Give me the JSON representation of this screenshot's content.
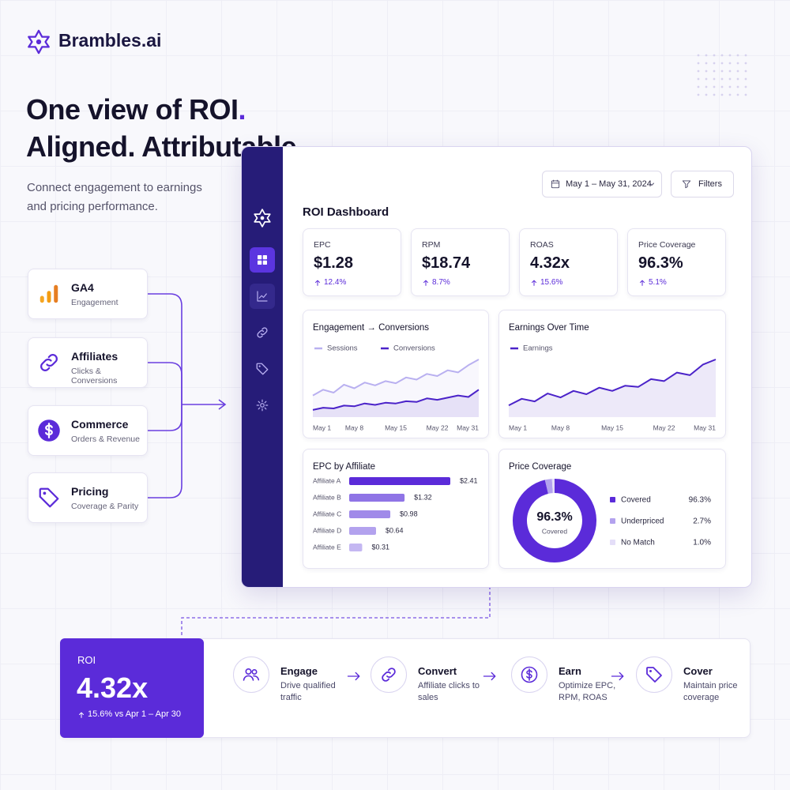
{
  "brand": {
    "name": "Brambles.ai"
  },
  "hero": {
    "title_lines": [
      "One view of ROI.",
      "Aligned. Attributable."
    ],
    "subtitle_lines": [
      "Connect engagement to earnings",
      "and pricing performance."
    ]
  },
  "sources": [
    {
      "name": "GA4",
      "detail": "Engagement"
    },
    {
      "name": "Affiliates",
      "detail": "Clicks & Conversions"
    },
    {
      "name": "Commerce",
      "detail": "Orders & Revenue"
    },
    {
      "name": "Pricing",
      "detail": "Coverage & Parity"
    }
  ],
  "dashboard": {
    "title": "ROI Dashboard",
    "date_range": "May 1 – May 31, 2024",
    "filters": "Filters",
    "kpis": [
      {
        "label": "EPC",
        "value": "$1.28",
        "change": "12.4%"
      },
      {
        "label": "RPM",
        "value": "$18.74",
        "change": "8.7%"
      },
      {
        "label": "ROAS",
        "value": "4.32x",
        "change": "15.6%"
      },
      {
        "label": "Price Coverage",
        "value": "96.3%",
        "change": "5.1%"
      }
    ],
    "charts": [
      {
        "type": "line",
        "title": "Engagement → Conversions",
        "categories": [
          "May 1",
          null,
          null,
          null,
          "May 8",
          null,
          null,
          null,
          "May 15",
          null,
          null,
          null,
          "May 22",
          null,
          null,
          null,
          "May 31"
        ],
        "series": [
          {
            "name": "Sessions",
            "color": "#b9b0f0",
            "values": [
              30,
              38,
              34,
              45,
              40,
              48,
              44,
              50,
              47,
              55,
              52,
              60,
              57,
              65,
              62,
              72,
              80
            ]
          },
          {
            "name": "Conversions",
            "color": "#4b23c9",
            "values": [
              10,
              13,
              12,
              16,
              15,
              19,
              17,
              20,
              19,
              22,
              21,
              26,
              24,
              27,
              30,
              28,
              38
            ]
          }
        ]
      },
      {
        "type": "line",
        "title": "Earnings Over Time",
        "categories": [
          "May 1",
          null,
          null,
          null,
          "May 8",
          null,
          null,
          null,
          "May 15",
          null,
          null,
          null,
          "May 22",
          null,
          null,
          null,
          "May 31"
        ],
        "series": [
          {
            "name": "Earnings",
            "color": "#4b23c9",
            "values": [
              18,
              28,
              24,
              36,
              30,
              40,
              35,
              45,
              40,
              48,
              46,
              58,
              55,
              68,
              64,
              80,
              88
            ]
          }
        ]
      },
      {
        "type": "bar",
        "title": "EPC by Affiliate",
        "categories": [
          "Affiliate A",
          "Affiliate B",
          "Affiliate C",
          "Affiliate D",
          "Affiliate E"
        ],
        "values": [
          2.41,
          1.32,
          0.98,
          0.64,
          0.31
        ],
        "value_labels": [
          "$2.41",
          "$1.32",
          "$0.98",
          "$0.64",
          "$0.31"
        ],
        "colors": [
          "#5b2bd9",
          "#8f74e6",
          "#a08ae9",
          "#b3a2ee",
          "#c4b7f2"
        ]
      },
      {
        "type": "pie",
        "title": "Price Coverage",
        "categories": [
          "Covered",
          "Underpriced",
          "No Match"
        ],
        "values": [
          96.3,
          2.7,
          1.0
        ],
        "value_labels": [
          "96.3%",
          "2.7%",
          "1.0%"
        ],
        "colors": [
          "#5b2bd9",
          "#b3a2ee",
          "#e4def8"
        ],
        "center_sublabel": "Covered"
      }
    ]
  },
  "roi": {
    "label": "ROI",
    "value": "4.32x",
    "change": "15.6% vs Apr 1 – Apr 30"
  },
  "steps": [
    {
      "title": "Engage",
      "text": "Drive qualified traffic"
    },
    {
      "title": "Convert",
      "text": "Affiliate clicks to sales"
    },
    {
      "title": "Earn",
      "text": "Optimize EPC, RPM, ROAS"
    },
    {
      "title": "Cover",
      "text": "Maintain price coverage"
    }
  ]
}
